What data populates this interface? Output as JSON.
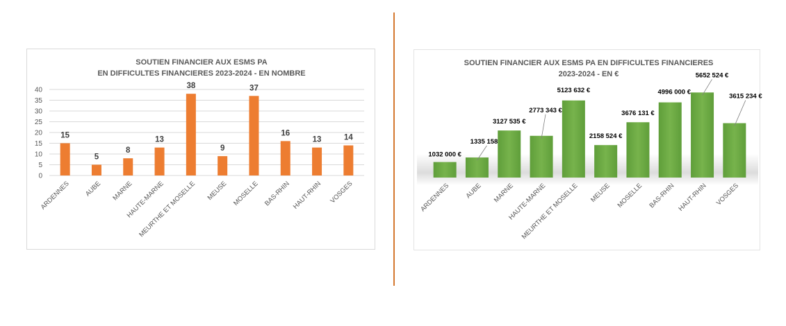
{
  "chart_data": [
    {
      "type": "bar",
      "title": "SOUTIEN FINANCIER AUX ESMS PA",
      "subtitle": "EN DIFFICULTES FINANCIERES 2023-2024 - EN NOMBRE",
      "categories": [
        "ARDENNES",
        "AUBE",
        "MARNE",
        "HAUTE-MARNE",
        "MEURTHE ET MOSELLE",
        "MEUSE",
        "MOSELLE",
        "BAS-RHIN",
        "HAUT-RHIN",
        "VOSGES"
      ],
      "values": [
        15,
        5,
        8,
        13,
        38,
        9,
        37,
        16,
        13,
        14
      ],
      "data_labels": [
        "15",
        "5",
        "8",
        "13",
        "38",
        "9",
        "37",
        "16",
        "13",
        "14"
      ],
      "ylim": [
        0,
        40
      ],
      "yticks": [
        "0",
        "5",
        "10",
        "15",
        "20",
        "25",
        "30",
        "35",
        "40"
      ],
      "grid": true,
      "colors": {
        "bar": "#ed7d31",
        "grid": "#d9d9d9"
      }
    },
    {
      "type": "bar",
      "title": "SOUTIEN FINANCIER AUX ESMS PA EN DIFFICULTES FINANCIERES",
      "subtitle": "2023-2024 - EN €",
      "categories": [
        "ARDENNES",
        "AUBE",
        "MARNE",
        "HAUTE-MARNE",
        "MEURTHE ET MOSELLE",
        "MEUSE",
        "MOSELLE",
        "BAS-RHIN",
        "HAUT-RHIN",
        "VOSGES"
      ],
      "values": [
        1032000,
        1335158,
        3127535,
        2773343,
        5123632,
        2158524,
        3676131,
        4996000,
        5652524,
        3615234
      ],
      "data_labels": [
        "1032 000 €",
        "1335 158 €",
        "3127 535 €",
        "2773 343 €",
        "5123 632 €",
        "2158 524 €",
        "3676 131 €",
        "4996 000 €",
        "5652 524 €",
        "3615 234 €"
      ],
      "grid": false,
      "colors": {
        "bar": "#70ad47",
        "bar_light": "#8cc661",
        "bar_dark": "#5a9a36"
      }
    }
  ]
}
